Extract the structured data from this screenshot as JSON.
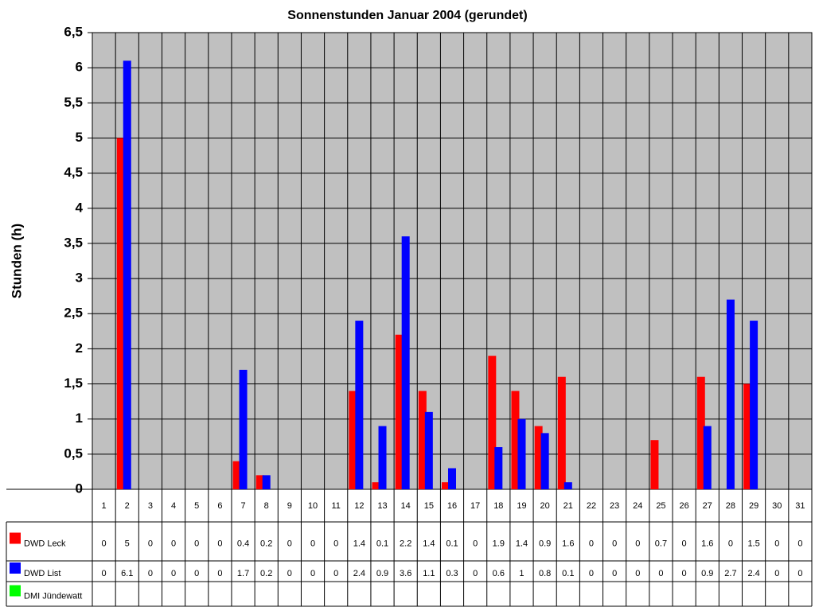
{
  "chart_data": {
    "type": "bar",
    "title": "Sonnenstunden Januar 2004 (gerundet)",
    "y_label": "Stunden (h)",
    "categories": [
      "1",
      "2",
      "3",
      "4",
      "5",
      "6",
      "7",
      "8",
      "9",
      "10",
      "11",
      "12",
      "13",
      "14",
      "15",
      "16",
      "17",
      "18",
      "19",
      "20",
      "21",
      "22",
      "23",
      "24",
      "25",
      "26",
      "27",
      "28",
      "29",
      "30",
      "31"
    ],
    "series": [
      {
        "name": "DWD Leck",
        "color": "#ff0000",
        "values": [
          0,
          5,
          0,
          0,
          0,
          0,
          0.4,
          0.2,
          0,
          0,
          0,
          1.4,
          0.1,
          2.2,
          1.4,
          0.1,
          0,
          1.9,
          1.4,
          0.9,
          1.6,
          0,
          0,
          0,
          0.7,
          0,
          1.6,
          0,
          1.5,
          0,
          0
        ]
      },
      {
        "name": "DWD List",
        "color": "#0000ff",
        "values": [
          0,
          6.1,
          0,
          0,
          0,
          0,
          1.7,
          0.2,
          0,
          0,
          0,
          2.4,
          0.9,
          3.6,
          1.1,
          0.3,
          0,
          0.6,
          1,
          0.8,
          0.1,
          0,
          0,
          0,
          0,
          0,
          0.9,
          2.7,
          2.4,
          0,
          0
        ]
      },
      {
        "name": "DMI Jündewatt",
        "color": "#00ff00",
        "values": [
          null,
          null,
          null,
          null,
          null,
          null,
          null,
          null,
          null,
          null,
          null,
          null,
          null,
          null,
          null,
          null,
          null,
          null,
          null,
          null,
          null,
          null,
          null,
          null,
          null,
          null,
          null,
          null,
          null,
          null,
          null
        ]
      }
    ],
    "ylim": [
      0,
      6.5
    ],
    "yticks": [
      0,
      {
        "value": 0.5,
        "label": "0,5"
      },
      1,
      {
        "value": 1.5,
        "label": "1,5"
      },
      2,
      {
        "value": 2.5,
        "label": "2,5"
      },
      3,
      {
        "value": 3.5,
        "label": "3,5"
      },
      4,
      {
        "value": 4.5,
        "label": "4,5"
      },
      5,
      {
        "value": 5.5,
        "label": "5,5"
      },
      6,
      {
        "value": 6.5,
        "label": "6,5"
      }
    ],
    "grid": true,
    "plot_background": "#c0c0c0"
  }
}
